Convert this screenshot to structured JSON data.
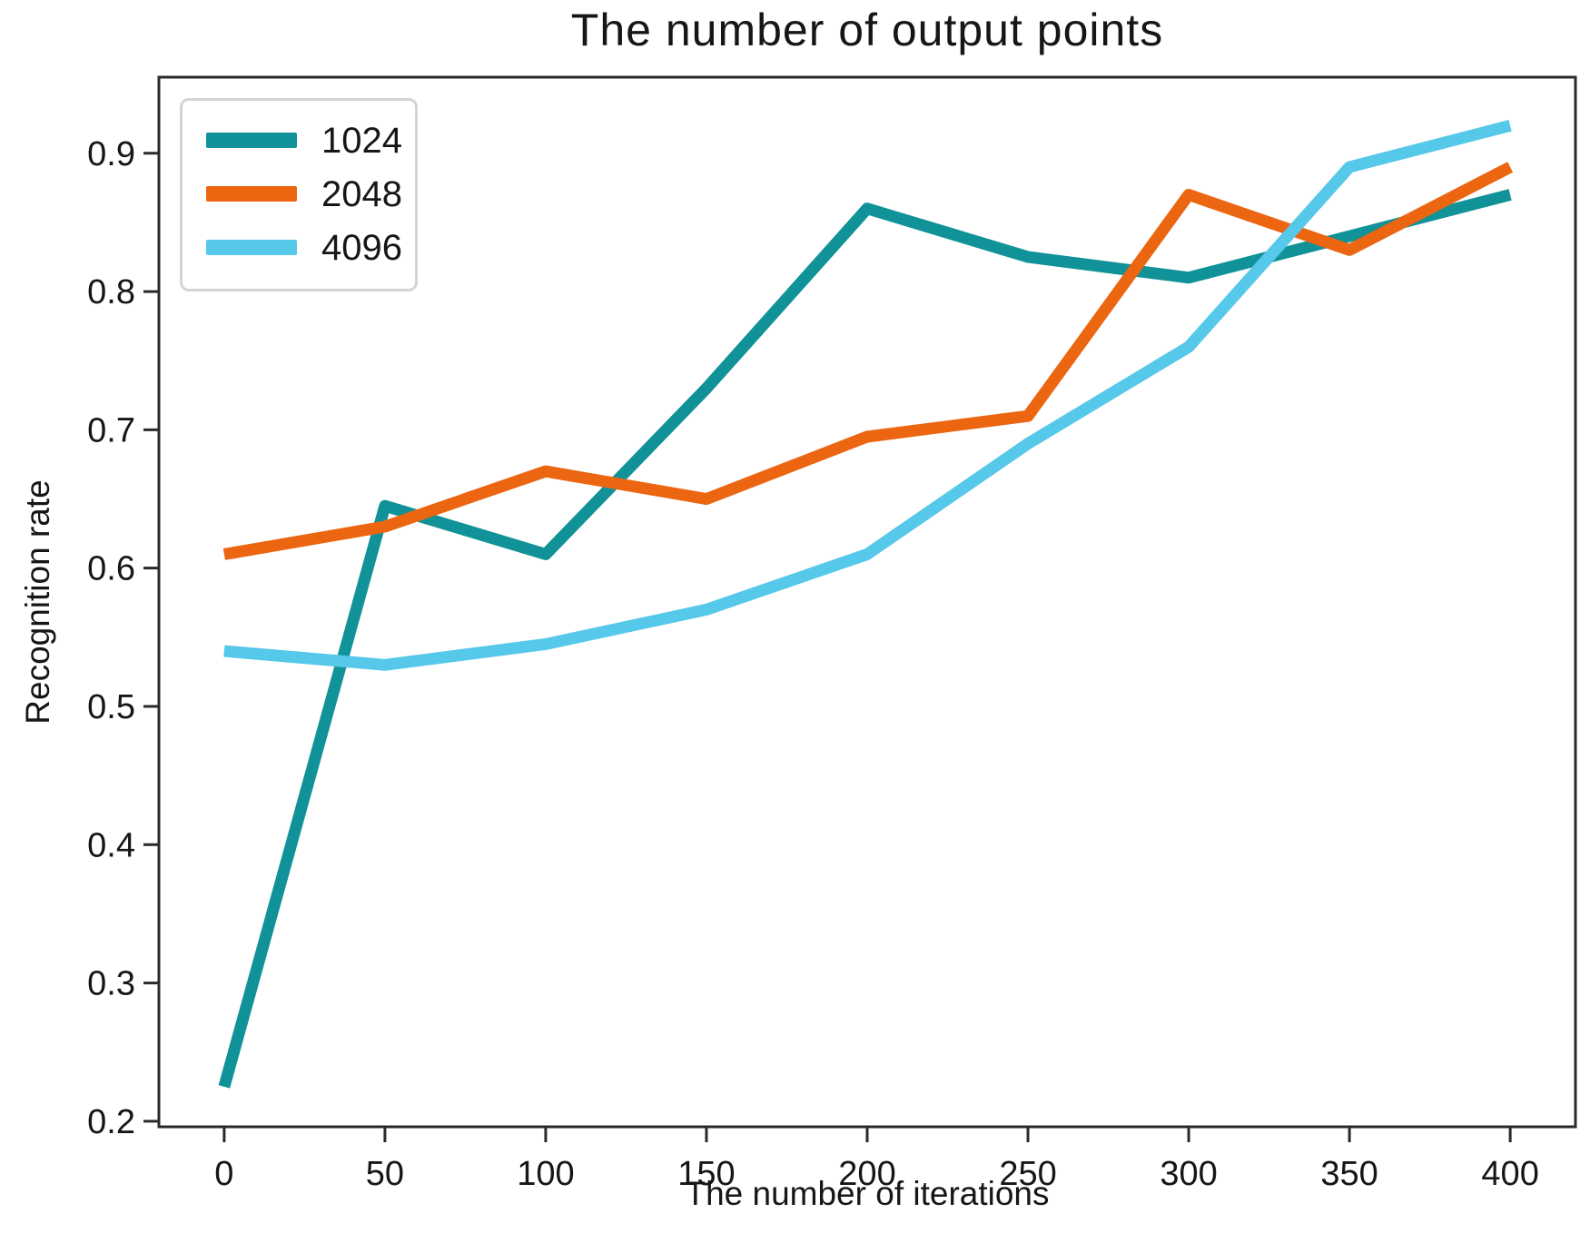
{
  "chart_data": {
    "type": "line",
    "title": "The number of output points",
    "xlabel": "The number of iterations",
    "ylabel": "Recognition rate",
    "x": [
      0,
      50,
      100,
      150,
      200,
      250,
      300,
      350,
      400
    ],
    "series": [
      {
        "name": "1024",
        "color": "#119298",
        "values": [
          0.225,
          0.645,
          0.61,
          0.73,
          0.86,
          0.825,
          0.81,
          0.84,
          0.87
        ]
      },
      {
        "name": "2048",
        "color": "#ec6511",
        "values": [
          0.61,
          0.63,
          0.67,
          0.65,
          0.695,
          0.71,
          0.87,
          0.83,
          0.89
        ]
      },
      {
        "name": "4096",
        "color": "#56c8ea",
        "values": [
          0.54,
          0.53,
          0.545,
          0.57,
          0.61,
          0.69,
          0.76,
          0.89,
          0.92
        ]
      }
    ],
    "xticks": [
      0,
      50,
      100,
      150,
      200,
      250,
      300,
      350,
      400
    ],
    "yticks": [
      0.2,
      0.3,
      0.4,
      0.5,
      0.6,
      0.7,
      0.8,
      0.9
    ],
    "xlim": [
      -20.3,
      420.3
    ],
    "ylim": [
      0.196,
      0.955
    ],
    "grid": false,
    "legend_position": "upper left",
    "line_width": 13,
    "axis_color": "#2a2a2a",
    "text_color": "#161616"
  }
}
